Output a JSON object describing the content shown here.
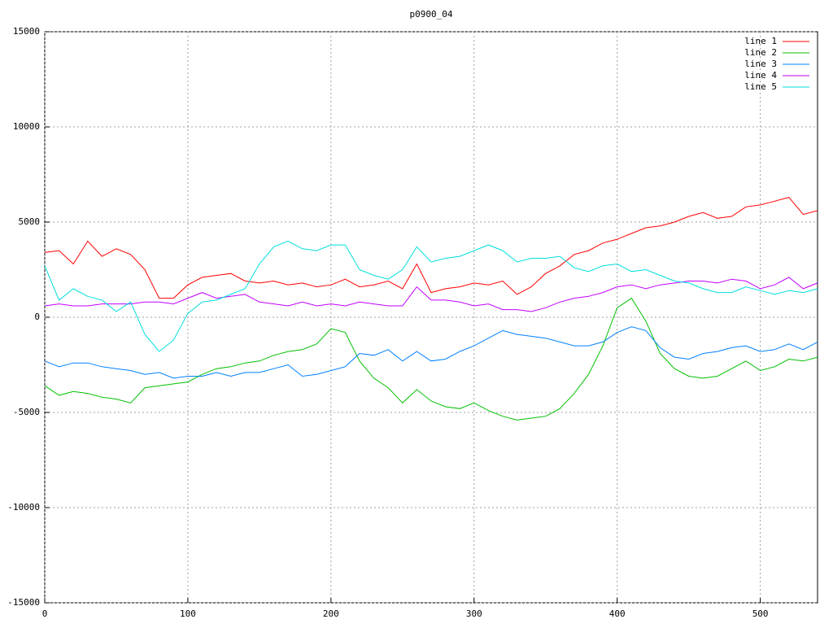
{
  "chart_data": {
    "type": "line",
    "title": "p0900_04",
    "x": [
      0,
      10,
      20,
      30,
      40,
      50,
      60,
      70,
      80,
      90,
      100,
      110,
      120,
      130,
      140,
      150,
      160,
      170,
      180,
      190,
      200,
      210,
      220,
      230,
      240,
      250,
      260,
      270,
      280,
      290,
      300,
      310,
      320,
      330,
      340,
      350,
      360,
      370,
      380,
      390,
      400,
      410,
      420,
      430,
      440,
      450,
      460,
      470,
      480,
      490,
      500,
      510,
      520,
      530,
      540
    ],
    "series": [
      {
        "name": "line 1",
        "color": "#ff0000",
        "values": [
          3400,
          3500,
          2800,
          4000,
          3200,
          3600,
          3300,
          2500,
          1000,
          1000,
          1700,
          2100,
          2200,
          2300,
          1900,
          1800,
          1900,
          1700,
          1800,
          1600,
          1700,
          2000,
          1600,
          1700,
          1900,
          1500,
          2800,
          1300,
          1500,
          1600,
          1800,
          1700,
          1900,
          1200,
          1600,
          2300,
          2700,
          3300,
          3500,
          3900,
          4100,
          4400,
          4700,
          4800,
          5000,
          5300,
          5500,
          5200,
          5300,
          5800,
          5900,
          6100,
          6300,
          5400,
          5600
        ]
      },
      {
        "name": "line 2",
        "color": "#00c000",
        "values": [
          -3600,
          -4100,
          -3900,
          -4000,
          -4200,
          -4300,
          -4500,
          -3700,
          -3600,
          -3500,
          -3400,
          -3000,
          -2700,
          -2600,
          -2400,
          -2300,
          -2000,
          -1800,
          -1700,
          -1400,
          -600,
          -800,
          -2300,
          -3200,
          -3700,
          -4500,
          -3800,
          -4400,
          -4700,
          -4800,
          -4500,
          -4900,
          -5200,
          -5400,
          -5300,
          -5200,
          -4800,
          -4000,
          -3000,
          -1500,
          500,
          1000,
          -200,
          -1900,
          -2700,
          -3100,
          -3200,
          -3100,
          -2700,
          -2300,
          -2800,
          -2600,
          -2200,
          -2300,
          -2100
        ]
      },
      {
        "name": "line 3",
        "color": "#0080ff",
        "values": [
          -2300,
          -2600,
          -2400,
          -2400,
          -2600,
          -2700,
          -2800,
          -3000,
          -2900,
          -3200,
          -3100,
          -3100,
          -2900,
          -3100,
          -2900,
          -2900,
          -2700,
          -2500,
          -3100,
          -3000,
          -2800,
          -2600,
          -1900,
          -2000,
          -1700,
          -2300,
          -1800,
          -2300,
          -2200,
          -1800,
          -1500,
          -1100,
          -700,
          -900,
          -1000,
          -1100,
          -1300,
          -1500,
          -1500,
          -1300,
          -800,
          -500,
          -700,
          -1600,
          -2100,
          -2200,
          -1900,
          -1800,
          -1600,
          -1500,
          -1800,
          -1700,
          -1400,
          -1700,
          -1300
        ]
      },
      {
        "name": "line 4",
        "color": "#c000ff",
        "values": [
          600,
          700,
          600,
          600,
          700,
          700,
          700,
          800,
          800,
          700,
          1000,
          1300,
          1000,
          1100,
          1200,
          800,
          700,
          600,
          800,
          600,
          700,
          600,
          800,
          700,
          600,
          600,
          1600,
          900,
          900,
          800,
          600,
          700,
          400,
          400,
          300,
          500,
          800,
          1000,
          1100,
          1300,
          1600,
          1700,
          1500,
          1700,
          1800,
          1900,
          1900,
          1800,
          2000,
          1900,
          1500,
          1700,
          2100,
          1500,
          1800
        ]
      },
      {
        "name": "line 5",
        "color": "#00dddd",
        "values": [
          2700,
          900,
          1500,
          1100,
          900,
          300,
          800,
          -900,
          -1800,
          -1200,
          200,
          800,
          900,
          1200,
          1500,
          2800,
          3700,
          4000,
          3600,
          3500,
          3800,
          3800,
          2500,
          2200,
          2000,
          2500,
          3700,
          2900,
          3100,
          3200,
          3500,
          3800,
          3500,
          2900,
          3100,
          3100,
          3200,
          2600,
          2400,
          2700,
          2800,
          2400,
          2500,
          2200,
          1900,
          1800,
          1500,
          1300,
          1300,
          1600,
          1400,
          1200,
          1400,
          1300,
          1500
        ]
      }
    ],
    "xlim": [
      0,
      540
    ],
    "xticks": [
      0,
      100,
      200,
      300,
      400,
      500
    ],
    "ylim": [
      -15000,
      15000
    ],
    "yticks": [
      -15000,
      -10000,
      -5000,
      0,
      5000,
      10000,
      15000
    ],
    "grid": true,
    "legend": "top-right"
  }
}
